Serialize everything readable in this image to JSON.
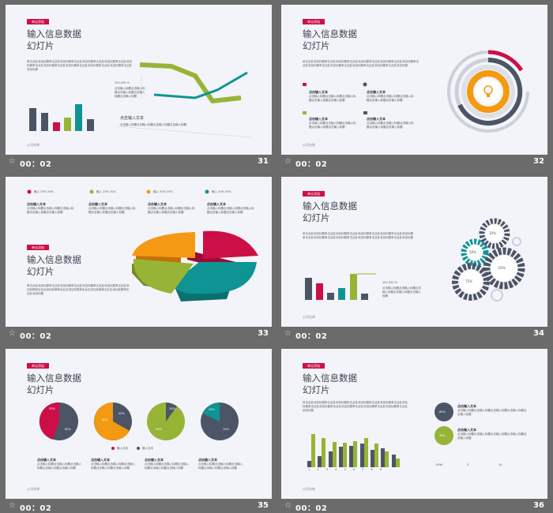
{
  "common": {
    "tag": "单击添加",
    "title_line1": "输入信息数据",
    "title_line2": "幻灯片",
    "para_long": "单击此处添加标题单击此处添加标题单击此处添加标题单击此处添加标题单击此处添加标题单击此处添加标题单击此处添加标题单击此处添加标题单击此处添加标题单击此处添加标题",
    "footer": "公司名称",
    "item_title": "点击输入文本",
    "item_text": "点击输入标题点击输入标题点击输入标题点击输入标题点击输入标题"
  },
  "slides": [
    {
      "time": "00：02",
      "number": "31",
      "stat": "152,530 %",
      "note": "点击输入文本",
      "note_text": "点击输入标题点击输入标题点击输入标题点击输入标题"
    },
    {
      "time": "00：02",
      "number": "32"
    },
    {
      "time": "00：02",
      "number": "33",
      "legend_text": "输入  20% 20%"
    },
    {
      "time": "00：02",
      "number": "34",
      "stat": "152,530 %"
    },
    {
      "time": "00：02",
      "number": "35",
      "pie_labels": [
        "输入文本",
        "输入文本"
      ],
      "pcts": [
        "65%",
        "35%",
        "40%",
        "60%",
        "90%",
        "10%",
        "25%",
        "75%"
      ]
    },
    {
      "time": "00：02",
      "number": "36",
      "circle_pcts": [
        "60%",
        "40%"
      ],
      "x_ticks": [
        "1",
        "2",
        "3",
        "4",
        "5",
        "6",
        "7",
        "8",
        "9"
      ],
      "stats": [
        "1996",
        "5",
        "10"
      ]
    }
  ],
  "gear_pcts": [
    "10%",
    "50%",
    "65%",
    "75%"
  ],
  "colors": {
    "red": "#cc0f47",
    "teal": "#0f9494",
    "green": "#97b437",
    "orange": "#f39a12",
    "slate": "#4c5566"
  }
}
